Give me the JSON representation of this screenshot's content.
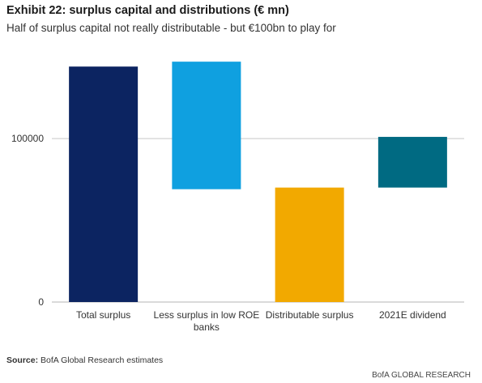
{
  "header": {
    "title": "Exhibit 22: surplus capital and distributions (€ mn)",
    "subtitle": "Half of surplus capital not really distributable - but €100bn to play for"
  },
  "footer": {
    "source_label": "Source:",
    "source_text": "BofA Global Research estimates",
    "brand": "BofA GLOBAL RESEARCH"
  },
  "chart_data": {
    "type": "bar",
    "subtype": "waterfall",
    "title": "Exhibit 22: surplus capital and distributions (€ mn)",
    "subtitle": "Half of surplus capital not really distributable - but €100bn to play for",
    "categories": [
      "Total surplus",
      "Less surplus in low ROE banks",
      "Distributable surplus",
      "2021E dividend"
    ],
    "category_lines": [
      [
        "Total surplus"
      ],
      [
        "Less surplus in low ROE",
        "banks"
      ],
      [
        "Distributable surplus"
      ],
      [
        "2021E dividend"
      ]
    ],
    "bars": [
      {
        "category": "Total surplus",
        "start": 0,
        "end": 144000,
        "color": "#0c2461"
      },
      {
        "category": "Less surplus in low ROE banks",
        "start": 69000,
        "end": 147000,
        "color": "#0fa0e0"
      },
      {
        "category": "Distributable surplus",
        "start": 0,
        "end": 70000,
        "color": "#f2a900"
      },
      {
        "category": "2021E dividend",
        "start": 70000,
        "end": 101000,
        "color": "#006a82"
      }
    ],
    "yticks": [
      0,
      100000
    ],
    "ylim": [
      0,
      155000
    ],
    "xlabel": "",
    "ylabel": "",
    "grid": true,
    "legend": "none"
  }
}
